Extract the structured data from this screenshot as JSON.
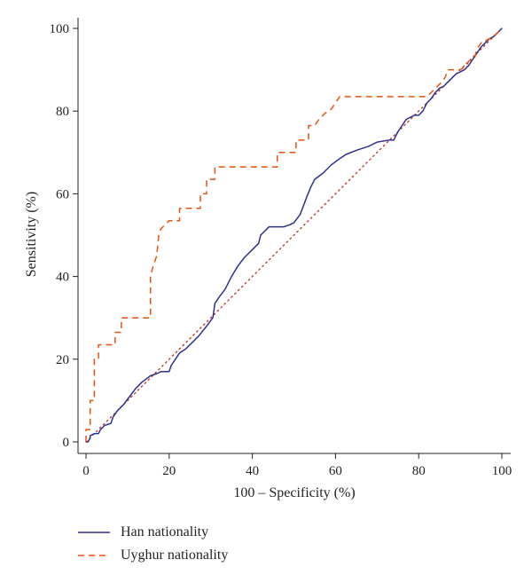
{
  "chart_data": {
    "type": "line",
    "xlabel": "100 – Specificity (%)",
    "ylabel": "Sensitivity (%)",
    "xlim": [
      0,
      100
    ],
    "ylim": [
      0,
      100
    ],
    "xticks": [
      "0",
      "20",
      "40",
      "60",
      "80",
      "100"
    ],
    "yticks": [
      "0",
      "20",
      "40",
      "60",
      "80",
      "100"
    ],
    "grid": false,
    "legend_position": "bottom-left",
    "reference_line": {
      "style": "dotted",
      "color": "#c0392b",
      "x": [
        0,
        100
      ],
      "y": [
        0,
        100
      ]
    },
    "series": [
      {
        "name": "Han nationality",
        "color": "#2e3192",
        "style": "solid",
        "x": [
          0,
          0.5,
          1,
          1,
          2,
          3,
          3.5,
          4.5,
          6,
          6.5,
          7.5,
          9,
          10.5,
          12,
          13.5,
          15.5,
          17,
          18,
          20,
          20.5,
          21.5,
          22.5,
          24,
          25.5,
          27,
          29,
          30.5,
          31,
          32,
          33.5,
          35,
          36.5,
          38,
          40,
          41.5,
          42,
          43,
          44,
          45.5,
          47.5,
          49,
          50,
          51.5,
          53,
          54,
          55,
          57,
          59,
          61,
          62.5,
          65,
          68,
          70,
          73,
          74,
          75,
          76,
          77,
          79,
          80,
          81,
          82,
          83,
          84,
          85,
          86,
          87,
          88,
          89,
          90,
          91,
          92,
          93,
          94,
          95,
          96,
          97,
          98,
          99,
          100
        ],
        "y": [
          0,
          0,
          1,
          1.5,
          2,
          2,
          3,
          4,
          4.5,
          6,
          7.5,
          9,
          11,
          13,
          14.5,
          16,
          16.5,
          17,
          17,
          18.5,
          20,
          21.5,
          22.5,
          24,
          25.5,
          28,
          30,
          33.5,
          35,
          37,
          40,
          42.5,
          44.5,
          46.5,
          48,
          50,
          51,
          52,
          52,
          52,
          52.5,
          53,
          55,
          59,
          61.5,
          63.5,
          65,
          67,
          68.5,
          69.5,
          70.5,
          71.5,
          72.5,
          73,
          73,
          75,
          76.5,
          78,
          79,
          79,
          80,
          82,
          83,
          84.5,
          85.5,
          86,
          87,
          88,
          89,
          89.5,
          90,
          91,
          92.5,
          94,
          95.5,
          96.5,
          97.5,
          98,
          99,
          100
        ]
      },
      {
        "name": "Uyghur nationality",
        "color": "#e8520f",
        "style": "dashed",
        "x": [
          0,
          0,
          1,
          1,
          2,
          2,
          3,
          3,
          7,
          7,
          8.5,
          8.5,
          15.5,
          15.5,
          16,
          17,
          17.5,
          18,
          20,
          22.5,
          22.5,
          27.5,
          27.5,
          29,
          29,
          31,
          31,
          46,
          46,
          50.5,
          50.5,
          53.5,
          53.5,
          55,
          56,
          57.5,
          59,
          60,
          61,
          82,
          83,
          84,
          85,
          86,
          86.5,
          87,
          90,
          91.5,
          92,
          93.5,
          94,
          95,
          95.5,
          96,
          97,
          98,
          99,
          100
        ],
        "y": [
          0,
          3,
          3,
          10,
          10,
          20,
          20,
          23.5,
          23.5,
          26.5,
          26.5,
          30,
          30,
          40,
          42,
          45,
          50,
          51.5,
          53.5,
          53.5,
          56.5,
          56.5,
          60,
          60,
          63.5,
          63.5,
          66.5,
          66.5,
          70,
          70,
          73,
          73,
          76.5,
          76.5,
          78,
          79.5,
          80.5,
          82,
          83.5,
          83.5,
          84.5,
          85.5,
          86.5,
          87.5,
          88.5,
          90,
          90,
          91,
          92,
          93,
          95,
          96.5,
          96.5,
          97,
          97.5,
          98,
          99,
          100
        ]
      }
    ]
  }
}
